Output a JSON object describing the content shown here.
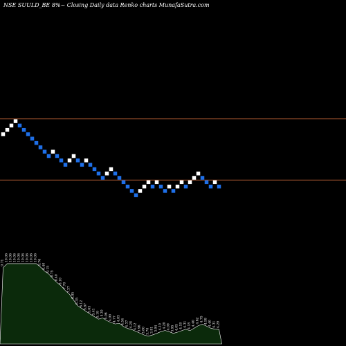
{
  "header": {
    "title": "NSE SUULD_BE 8%~  Closing Daily data  Renko  charts MunafaSutra.com"
  },
  "colors": {
    "background": "#000000",
    "brick_up": "#ffffff",
    "brick_down": "#1e6fe8",
    "reference_line": "#a0522d",
    "volume_fill": "#0b2a0b",
    "volume_line": "#ffffff"
  },
  "chart_data": {
    "type": "renko",
    "brick_percent": 8,
    "bricks": [
      {
        "dir": "up",
        "level": 41
      },
      {
        "dir": "up",
        "level": 42
      },
      {
        "dir": "up",
        "level": 43
      },
      {
        "dir": "up",
        "level": 44
      },
      {
        "dir": "down",
        "level": 43
      },
      {
        "dir": "down",
        "level": 42
      },
      {
        "dir": "down",
        "level": 41
      },
      {
        "dir": "down",
        "level": 40
      },
      {
        "dir": "down",
        "level": 39
      },
      {
        "dir": "down",
        "level": 38
      },
      {
        "dir": "down",
        "level": 37
      },
      {
        "dir": "down",
        "level": 36
      },
      {
        "dir": "up",
        "level": 37
      },
      {
        "dir": "down",
        "level": 36
      },
      {
        "dir": "down",
        "level": 35
      },
      {
        "dir": "down",
        "level": 34
      },
      {
        "dir": "up",
        "level": 35
      },
      {
        "dir": "up",
        "level": 36
      },
      {
        "dir": "down",
        "level": 35
      },
      {
        "dir": "down",
        "level": 34
      },
      {
        "dir": "up",
        "level": 35
      },
      {
        "dir": "down",
        "level": 34
      },
      {
        "dir": "down",
        "level": 33
      },
      {
        "dir": "down",
        "level": 32
      },
      {
        "dir": "down",
        "level": 31
      },
      {
        "dir": "up",
        "level": 32
      },
      {
        "dir": "up",
        "level": 33
      },
      {
        "dir": "down",
        "level": 32
      },
      {
        "dir": "down",
        "level": 31
      },
      {
        "dir": "down",
        "level": 30
      },
      {
        "dir": "down",
        "level": 29
      },
      {
        "dir": "down",
        "level": 28
      },
      {
        "dir": "down",
        "level": 27
      },
      {
        "dir": "up",
        "level": 28
      },
      {
        "dir": "up",
        "level": 29
      },
      {
        "dir": "up",
        "level": 30
      },
      {
        "dir": "down",
        "level": 29
      },
      {
        "dir": "up",
        "level": 30
      },
      {
        "dir": "down",
        "level": 29
      },
      {
        "dir": "down",
        "level": 28
      },
      {
        "dir": "up",
        "level": 29
      },
      {
        "dir": "down",
        "level": 28
      },
      {
        "dir": "up",
        "level": 29
      },
      {
        "dir": "up",
        "level": 30
      },
      {
        "dir": "down",
        "level": 29
      },
      {
        "dir": "up",
        "level": 30
      },
      {
        "dir": "up",
        "level": 31
      },
      {
        "dir": "up",
        "level": 32
      },
      {
        "dir": "down",
        "level": 31
      },
      {
        "dir": "down",
        "level": 30
      },
      {
        "dir": "down",
        "level": 29
      },
      {
        "dir": "up",
        "level": 30
      },
      {
        "dir": "down",
        "level": 29
      }
    ],
    "reference_levels": [
      45,
      30
    ],
    "volume_labels": [
      "9.71",
      "10.06",
      "10.06",
      "10.06",
      "10.06",
      "10.06",
      "10.06",
      "10.06",
      "10.06",
      "9.76",
      "9.40",
      "9.15",
      "8.75",
      "8.40",
      "8.10",
      "7.70",
      "7.37",
      "6.85",
      "6.35",
      "6.12",
      "5.87",
      "5.63",
      "5.41",
      "5.19",
      "5.30",
      "5.06",
      "4.90",
      "4.77",
      "4.83",
      "4.54",
      "4.37",
      "4.28",
      "4.12",
      "3.96",
      "3.80",
      "3.70",
      "3.81",
      "3.94",
      "4.10",
      "4.20",
      "4.09",
      "3.95",
      "4.05",
      "4.18",
      "4.31",
      "4.18",
      "4.40",
      "4.62",
      "4.75",
      "4.58",
      "4.40",
      "4.31",
      "4.29"
    ],
    "volume_values": [
      9.71,
      10.06,
      10.06,
      10.06,
      10.06,
      10.06,
      10.06,
      10.06,
      10.06,
      9.76,
      9.4,
      9.15,
      8.75,
      8.4,
      8.1,
      7.7,
      7.37,
      6.85,
      6.35,
      6.12,
      5.87,
      5.63,
      5.41,
      5.19,
      5.3,
      5.06,
      4.9,
      4.77,
      4.83,
      4.54,
      4.37,
      4.28,
      4.12,
      3.96,
      3.8,
      3.7,
      3.81,
      3.94,
      4.1,
      4.2,
      4.09,
      3.95,
      4.05,
      4.18,
      4.31,
      4.18,
      4.4,
      4.62,
      4.75,
      4.58,
      4.4,
      4.31,
      4.29
    ],
    "xlabel": "",
    "ylabel": ""
  }
}
